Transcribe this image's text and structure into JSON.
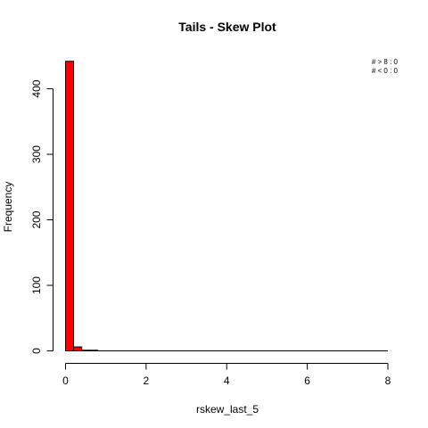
{
  "chart_data": {
    "type": "bar",
    "title": "Tails  - Skew Plot",
    "xlabel": "rskew_last_5",
    "ylabel": "Frequency",
    "xlim": [
      0,
      8
    ],
    "ylim": [
      0,
      440
    ],
    "x_ticks": [
      0,
      2,
      4,
      6,
      8
    ],
    "y_ticks": [
      0,
      100,
      200,
      300,
      400
    ],
    "bin_width": 0.2,
    "bins": [
      {
        "start": 0.0,
        "end": 0.2,
        "value": 442
      },
      {
        "start": 0.2,
        "end": 0.4,
        "value": 6
      },
      {
        "start": 0.4,
        "end": 0.6,
        "value": 1
      },
      {
        "start": 0.6,
        "end": 0.8,
        "value": 1
      }
    ],
    "bar_color": "#ff0000",
    "annotations": [
      "# > 8 : 0",
      "# < 0 : 0"
    ],
    "grid": false
  }
}
